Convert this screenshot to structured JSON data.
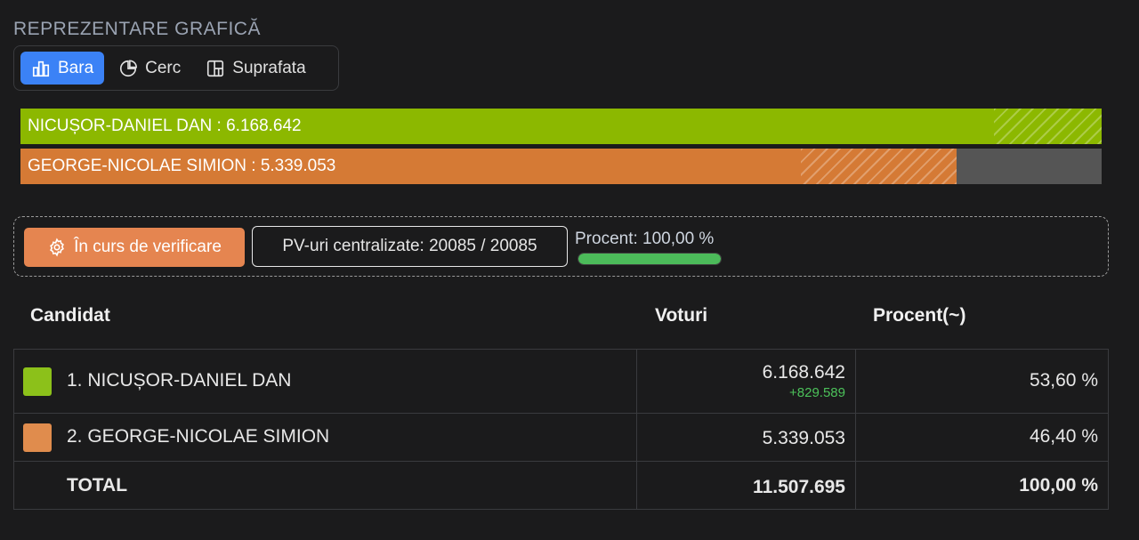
{
  "section_title": "REPREZENTARE GRAFICĂ",
  "tabs": [
    {
      "label": "Bara",
      "icon": "bar-chart-icon",
      "active": true
    },
    {
      "label": "Cerc",
      "icon": "pie-chart-icon",
      "active": false
    },
    {
      "label": "Suprafata",
      "icon": "treemap-icon",
      "active": false
    }
  ],
  "bars": [
    {
      "label": "NICUȘOR-DANIEL DAN : 6.168.642",
      "fraction": 1.0,
      "hatch_start": 0.9,
      "color": "#8cb800"
    },
    {
      "label": "GEORGE-NICOLAE SIMION : 5.339.053",
      "fraction": 0.8655,
      "hatch_start": 0.722,
      "color": "#d57a35"
    }
  ],
  "status": {
    "verify_label": "În curs de verificare",
    "pv_label": "PV-uri centralizate: 20085 / 20085",
    "percent_label": "Procent: 100,00 %",
    "progress": 1.0
  },
  "table": {
    "headers": {
      "candidate": "Candidat",
      "votes": "Voturi",
      "percent": "Procent(~)"
    },
    "rows": [
      {
        "name": "1. NICUȘOR-DANIEL DAN",
        "votes": "6.168.642",
        "delta": "+829.589",
        "percent": "53,60 %",
        "color": "#8cc11a"
      },
      {
        "name": "2. GEORGE-NICOLAE SIMION",
        "votes": "5.339.053",
        "delta": "",
        "percent": "46,40 %",
        "color": "#e08c4d"
      }
    ],
    "total": {
      "name": "TOTAL",
      "votes": "11.507.695",
      "percent": "100,00 %"
    }
  },
  "colors": {
    "accent": "#3b82f6",
    "verify": "#e58550",
    "progress": "#4cbb5a"
  }
}
